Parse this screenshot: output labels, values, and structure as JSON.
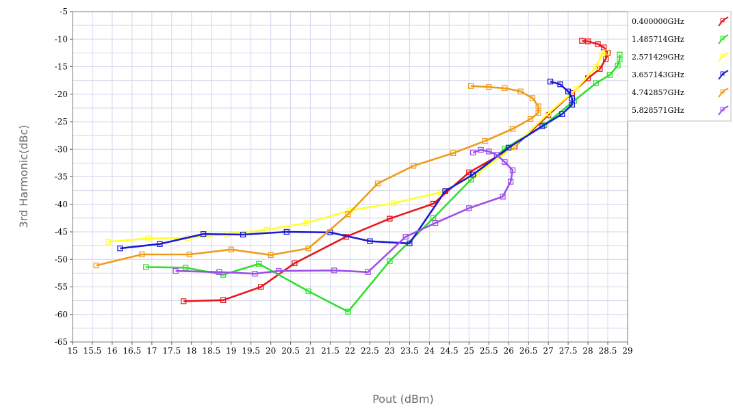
{
  "chart_data": {
    "type": "line",
    "title": "",
    "xlabel": "Pout (dBm)",
    "ylabel": "3rd Harmonic(dBc)",
    "xlim": [
      15,
      29
    ],
    "ylim": [
      -65,
      -5
    ],
    "xticks": [
      "15",
      "15.5",
      "16",
      "16.5",
      "17",
      "17.5",
      "18",
      "18.5",
      "19",
      "19.5",
      "20",
      "20.5",
      "21",
      "21.5",
      "22",
      "22.5",
      "23",
      "23.5",
      "24",
      "24.5",
      "25",
      "25.5",
      "26",
      "26.5",
      "27",
      "27.5",
      "28",
      "28.5",
      "29"
    ],
    "yticks": [
      "-5",
      "-10",
      "-15",
      "-20",
      "-25",
      "-30",
      "-35",
      "-40",
      "-45",
      "-50",
      "-55",
      "-60",
      "-65"
    ],
    "grid": true,
    "legend_position": "top-right",
    "series": [
      {
        "name": "0.400000GHz",
        "color": "#e8161b",
        "points": [
          [
            17.8,
            -57.6
          ],
          [
            18.8,
            -57.4
          ],
          [
            19.75,
            -55.0
          ],
          [
            20.6,
            -50.7
          ],
          [
            21.9,
            -45.9
          ],
          [
            23.0,
            -42.6
          ],
          [
            24.1,
            -39.9
          ],
          [
            25.0,
            -34.2
          ],
          [
            26.15,
            -29.5
          ],
          [
            27.0,
            -23.8
          ],
          [
            27.6,
            -19.8
          ],
          [
            28.0,
            -17.1
          ],
          [
            28.3,
            -15.4
          ],
          [
            28.45,
            -13.6
          ],
          [
            28.5,
            -12.5
          ],
          [
            28.4,
            -11.5
          ],
          [
            28.25,
            -10.9
          ],
          [
            28.0,
            -10.4
          ],
          [
            27.85,
            -10.3
          ]
        ]
      },
      {
        "name": "1.485714GHz",
        "color": "#2ee02a",
        "points": [
          [
            16.85,
            -51.4
          ],
          [
            17.85,
            -51.5
          ],
          [
            18.8,
            -52.8
          ],
          [
            19.7,
            -50.8
          ],
          [
            20.95,
            -55.8
          ],
          [
            21.95,
            -59.5
          ],
          [
            23.0,
            -50.3
          ],
          [
            24.1,
            -42.5
          ],
          [
            25.05,
            -35.5
          ],
          [
            25.9,
            -29.9
          ],
          [
            26.9,
            -25.6
          ],
          [
            27.65,
            -21.2
          ],
          [
            28.2,
            -18.0
          ],
          [
            28.55,
            -16.5
          ],
          [
            28.75,
            -14.8
          ],
          [
            28.8,
            -13.7
          ],
          [
            28.8,
            -12.8
          ]
        ]
      },
      {
        "name": "2.571429GHz",
        "color": "#ffff2a",
        "points": [
          [
            15.9,
            -46.8
          ],
          [
            16.9,
            -46.2
          ],
          [
            17.9,
            -46.1
          ],
          [
            18.9,
            -45.4
          ],
          [
            19.9,
            -44.6
          ],
          [
            20.9,
            -43.4
          ],
          [
            22.0,
            -41.1
          ],
          [
            23.1,
            -39.8
          ],
          [
            24.3,
            -37.8
          ],
          [
            25.2,
            -34.5
          ],
          [
            26.1,
            -29.7
          ],
          [
            27.0,
            -23.5
          ],
          [
            27.7,
            -19.1
          ],
          [
            28.2,
            -15.1
          ],
          [
            28.35,
            -12.8
          ],
          [
            28.45,
            -12.4
          ]
        ]
      },
      {
        "name": "3.657143GHz",
        "color": "#1a1ad6",
        "points": [
          [
            16.2,
            -48.0
          ],
          [
            17.2,
            -47.2
          ],
          [
            18.3,
            -45.4
          ],
          [
            19.3,
            -45.5
          ],
          [
            20.4,
            -45.0
          ],
          [
            21.5,
            -45.1
          ],
          [
            22.5,
            -46.7
          ],
          [
            23.5,
            -47.1
          ],
          [
            24.4,
            -37.6
          ],
          [
            25.1,
            -34.6
          ],
          [
            26.0,
            -29.7
          ],
          [
            26.85,
            -25.8
          ],
          [
            27.35,
            -23.6
          ],
          [
            27.6,
            -21.9
          ],
          [
            27.6,
            -20.8
          ],
          [
            27.5,
            -19.5
          ],
          [
            27.3,
            -18.2
          ],
          [
            27.05,
            -17.7
          ]
        ]
      },
      {
        "name": "4.742857GHz",
        "color": "#ef9b1a",
        "points": [
          [
            15.6,
            -51.1
          ],
          [
            16.75,
            -49.1
          ],
          [
            17.95,
            -49.1
          ],
          [
            19.0,
            -48.2
          ],
          [
            20.0,
            -49.2
          ],
          [
            20.95,
            -48.0
          ],
          [
            21.95,
            -41.8
          ],
          [
            22.7,
            -36.2
          ],
          [
            23.6,
            -33.0
          ],
          [
            24.6,
            -30.7
          ],
          [
            25.4,
            -28.5
          ],
          [
            26.1,
            -26.3
          ],
          [
            26.55,
            -24.5
          ],
          [
            26.75,
            -23.4
          ],
          [
            26.75,
            -22.2
          ],
          [
            26.6,
            -20.7
          ],
          [
            26.3,
            -19.5
          ],
          [
            25.9,
            -18.9
          ],
          [
            25.5,
            -18.7
          ],
          [
            25.05,
            -18.5
          ]
        ]
      },
      {
        "name": "5.828571GHz",
        "color": "#a04ee8",
        "points": [
          [
            17.6,
            -52.1
          ],
          [
            18.7,
            -52.3
          ],
          [
            19.6,
            -52.6
          ],
          [
            20.2,
            -52.1
          ],
          [
            21.6,
            -52.0
          ],
          [
            22.45,
            -52.3
          ],
          [
            23.4,
            -45.9
          ],
          [
            24.15,
            -43.4
          ],
          [
            25.0,
            -40.7
          ],
          [
            25.85,
            -38.6
          ],
          [
            26.05,
            -35.9
          ],
          [
            26.1,
            -33.8
          ],
          [
            25.9,
            -32.3
          ],
          [
            25.7,
            -31.0
          ],
          [
            25.5,
            -30.4
          ],
          [
            25.3,
            -30.1
          ],
          [
            25.1,
            -30.6
          ]
        ]
      }
    ]
  }
}
